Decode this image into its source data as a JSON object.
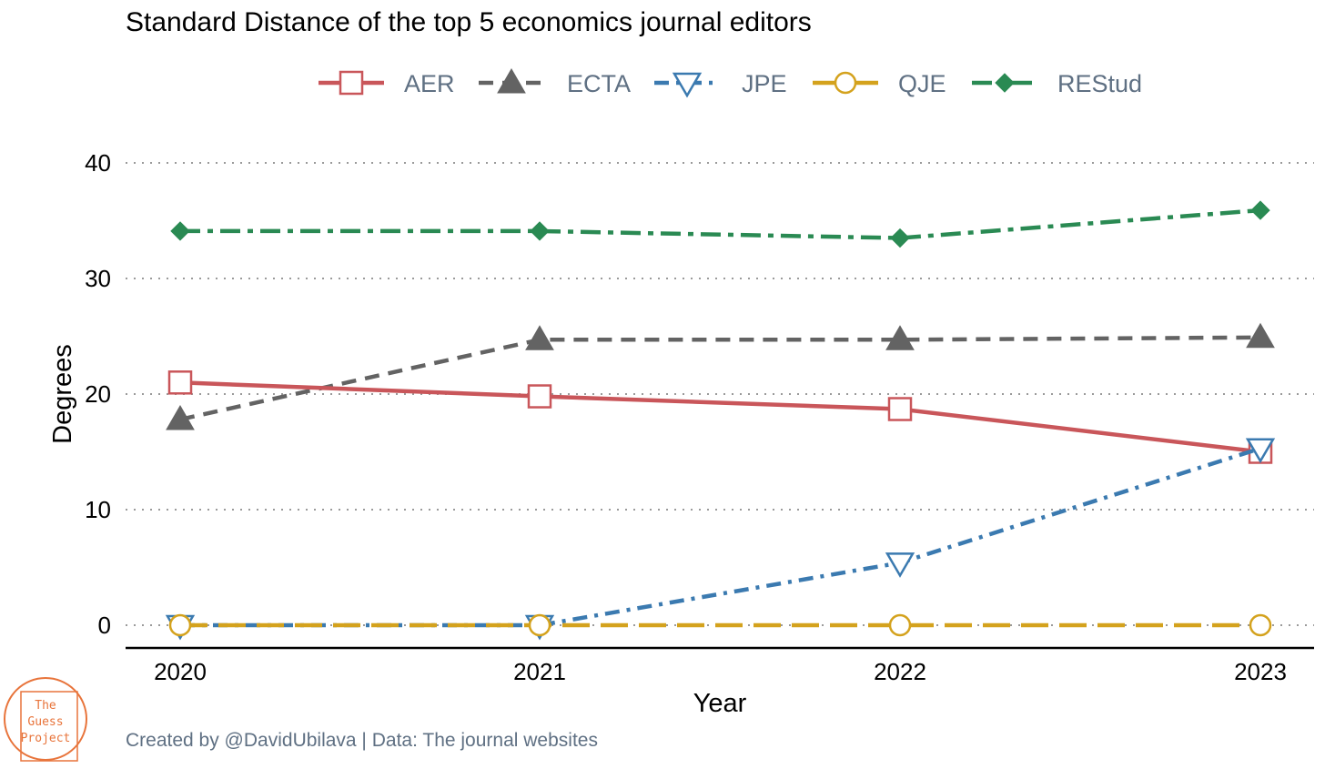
{
  "chart_data": {
    "type": "line",
    "title": "Standard Distance of the top 5 economics journal editors",
    "xlabel": "Year",
    "ylabel": "Degrees",
    "x": [
      2020,
      2021,
      2022,
      2023
    ],
    "x_tick_labels": [
      "2020",
      "2021",
      "2022",
      "2023"
    ],
    "ylim": [
      -2,
      42
    ],
    "y_ticks": [
      0,
      10,
      20,
      30,
      40
    ],
    "y_tick_labels": [
      "0",
      "10",
      "20",
      "30",
      "40"
    ],
    "grid": "horizontal dotted",
    "legend_position": "top",
    "series": [
      {
        "name": "AER",
        "values": [
          21.0,
          19.8,
          18.7,
          15.0
        ],
        "color": "#c9565a",
        "linestyle": "solid",
        "marker": "open-square"
      },
      {
        "name": "ECTA",
        "values": [
          17.8,
          24.7,
          24.7,
          24.9
        ],
        "color": "#636363",
        "linestyle": "dashed",
        "marker": "filled-triangle-up"
      },
      {
        "name": "JPE",
        "values": [
          0.0,
          0.0,
          5.4,
          15.3
        ],
        "color": "#3b7ab0",
        "linestyle": "dotdash",
        "marker": "open-triangle-down"
      },
      {
        "name": "QJE",
        "values": [
          0.0,
          0.0,
          0.0,
          0.0
        ],
        "color": "#d4a21d",
        "linestyle": "longdash",
        "marker": "open-circle"
      },
      {
        "name": "REStud",
        "values": [
          34.1,
          34.1,
          33.5,
          35.9
        ],
        "color": "#2a8a53",
        "linestyle": "twodash",
        "marker": "filled-diamond"
      }
    ],
    "caption": "Created by @DavidUbilava | Data: The journal websites"
  },
  "logo": {
    "lines": [
      "The",
      "Guess",
      "Project"
    ],
    "color": "#e8743b"
  }
}
